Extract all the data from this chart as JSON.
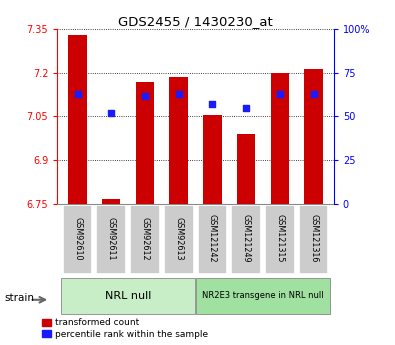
{
  "title": "GDS2455 / 1430230_at",
  "samples": [
    "GSM92610",
    "GSM92611",
    "GSM92612",
    "GSM92613",
    "GSM121242",
    "GSM121249",
    "GSM121315",
    "GSM121316"
  ],
  "bar_values": [
    7.33,
    6.765,
    7.17,
    7.185,
    7.055,
    6.99,
    7.2,
    7.215
  ],
  "percentile_values": [
    63,
    52,
    62,
    63,
    57,
    55,
    63,
    63
  ],
  "bar_bottom": 6.75,
  "ylim_left": [
    6.75,
    7.35
  ],
  "ylim_right": [
    0,
    100
  ],
  "yticks_left": [
    6.75,
    6.9,
    7.05,
    7.2,
    7.35
  ],
  "ytick_labels_left": [
    "6.75",
    "6.9",
    "7.05",
    "7.2",
    "7.35"
  ],
  "yticks_right": [
    0,
    25,
    50,
    75,
    100
  ],
  "ytick_labels_right": [
    "0",
    "25",
    "50",
    "75",
    "100%"
  ],
  "bar_color": "#cc0000",
  "dot_color": "#1a1aff",
  "group1_label": "NRL null",
  "group2_label": "NR2E3 transgene in NRL null",
  "group1_indices": [
    0,
    1,
    2,
    3
  ],
  "group2_indices": [
    4,
    5,
    6,
    7
  ],
  "group1_color": "#c8eec8",
  "group2_color": "#a0e0a0",
  "tick_label_bg": "#cccccc",
  "legend_bar_label": "transformed count",
  "legend_dot_label": "percentile rank within the sample",
  "strain_label": "strain",
  "bar_width": 0.55
}
